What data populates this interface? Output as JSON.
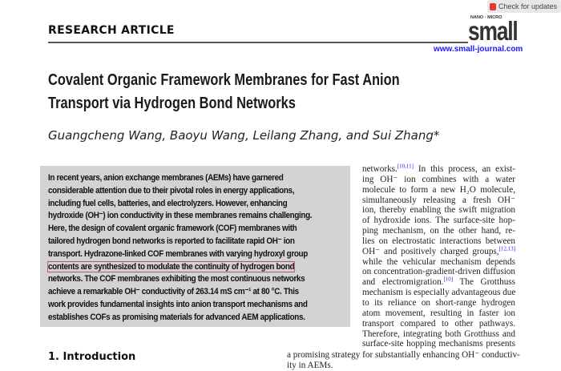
{
  "check_updates": "Check for updates",
  "header": {
    "section": "RESEARCH ARTICLE",
    "journal_tag": "NANO · MICRO",
    "journal": "small",
    "url": "www.small-journal.com"
  },
  "title_lines": [
    "Covalent Organic Framework Membranes for Fast Anion",
    "Transport via Hydrogen Bond Networks"
  ],
  "authors": "Guangcheng Wang, Baoyu Wang, Leilang Zhang, and Sui Zhang*",
  "abstract_lines": [
    "In recent years, anion exchange membranes (AEMs) have garnered",
    "considerable attention due to their pivotal roles in energy applications,",
    "including fuel cells, batteries, and electrolyzers. However, enhancing",
    "hydroxide (OH⁻) ion conductivity in these membranes remains challenging.",
    "Here, the design of covalent organic framework (COF) membranes with",
    "tailored hydrogen bond networks is reported to facilitate rapid OH⁻ ion",
    "transport. Hydrazone-linked COF membranes with varying hydroxyl group",
    "contents are synthesized to modulate the continuity of hydrogen bond",
    "networks. The COF membranes exhibiting the most continuous networks",
    "achieve a remarkable OH⁻ conductivity of 263.14 mS cm⁻¹ at 80 °C. This",
    "work provides fundamental insights into anion transport mechanisms and",
    "establishes COFs as promising materials for advanced AEM applications."
  ],
  "body_lines": [
    "networks.",
    "ing OH⁻ ion combines with a water",
    "molecule to form a new H₂O molecule,",
    "simultaneously releasing a fresh OH⁻",
    "ion, thereby enabling the swift migration",
    "of hydroxide ions. The surface-site hop-",
    "ping mechanism, on the other hand, re-",
    "lies on electrostatic interactions between",
    "OH⁻ and positively charged groups,",
    "while the vehicular mechanism depends",
    "on concentration-gradient-driven diffusion",
    "and electromigration.",
    "mechanism is especially advantageous due",
    "to its reliance on short-range hydrogen",
    "atom movement, resulting in faster ion",
    "transport compared to other pathways.",
    "Therefore, integrating both Grotthuss and",
    "surface-site hopping mechanisms presents"
  ],
  "body_extra": {
    "l0_ref": "[10,11]",
    "l0_tail": " In this process, an exist-",
    "l8_ref": "[12,13]",
    "l11_ref": "[10]",
    "l11_tail": " The Grotthuss"
  },
  "body_bottom": [
    "a promising strategy for substantially enhancing OH⁻ conductiv-",
    "ity in AEMs."
  ],
  "intro_heading": "1. Introduction"
}
